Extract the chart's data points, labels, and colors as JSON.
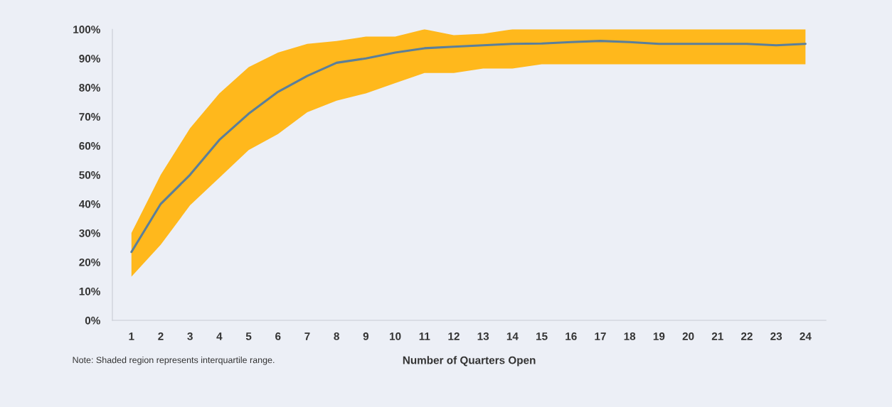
{
  "chart_data": {
    "type": "line",
    "xlabel": "Number of Quarters Open",
    "categories": [
      "1",
      "2",
      "3",
      "4",
      "5",
      "6",
      "7",
      "8",
      "9",
      "10",
      "11",
      "12",
      "13",
      "14",
      "15",
      "16",
      "17",
      "18",
      "19",
      "20",
      "21",
      "22",
      "23",
      "24"
    ],
    "series": [
      {
        "color": "#5b7f9a",
        "values": [
          23.5,
          40,
          50,
          62,
          71,
          78.5,
          84,
          88.5,
          90,
          92,
          93.5,
          94,
          94.5,
          95,
          95.1,
          95.6,
          96,
          95.6,
          95,
          95,
          95,
          95,
          94.5,
          95
        ],
        "lower": [
          15,
          26,
          39.5,
          49,
          58.5,
          64,
          71.5,
          75.5,
          78,
          81.5,
          85,
          85,
          86.5,
          86.5,
          88,
          88,
          88,
          88,
          88,
          88,
          88,
          88,
          88,
          88
        ],
        "upper": [
          30,
          50,
          66,
          78,
          87,
          92,
          95,
          96,
          97.5,
          97.5,
          100,
          98,
          98.5,
          100,
          100,
          100,
          100,
          100,
          100,
          100,
          100,
          100,
          100,
          100
        ]
      }
    ],
    "ylim": [
      0,
      100
    ],
    "yticks": [
      {
        "value": 0,
        "label": "0%"
      },
      {
        "value": 10,
        "label": "10%"
      },
      {
        "value": 20,
        "label": "20%"
      },
      {
        "value": 30,
        "label": "30%"
      },
      {
        "value": 40,
        "label": "40%"
      },
      {
        "value": 50,
        "label": "50%"
      },
      {
        "value": 60,
        "label": "60%"
      },
      {
        "value": 70,
        "label": "70%"
      },
      {
        "value": 80,
        "label": "80%"
      },
      {
        "value": 90,
        "label": "90%"
      },
      {
        "value": 100,
        "label": "100%"
      }
    ],
    "grid": false,
    "legend": false,
    "marker": "none",
    "line_style": "solid",
    "annotations": [
      "Note: Shaded region represents interquartile range."
    ]
  }
}
